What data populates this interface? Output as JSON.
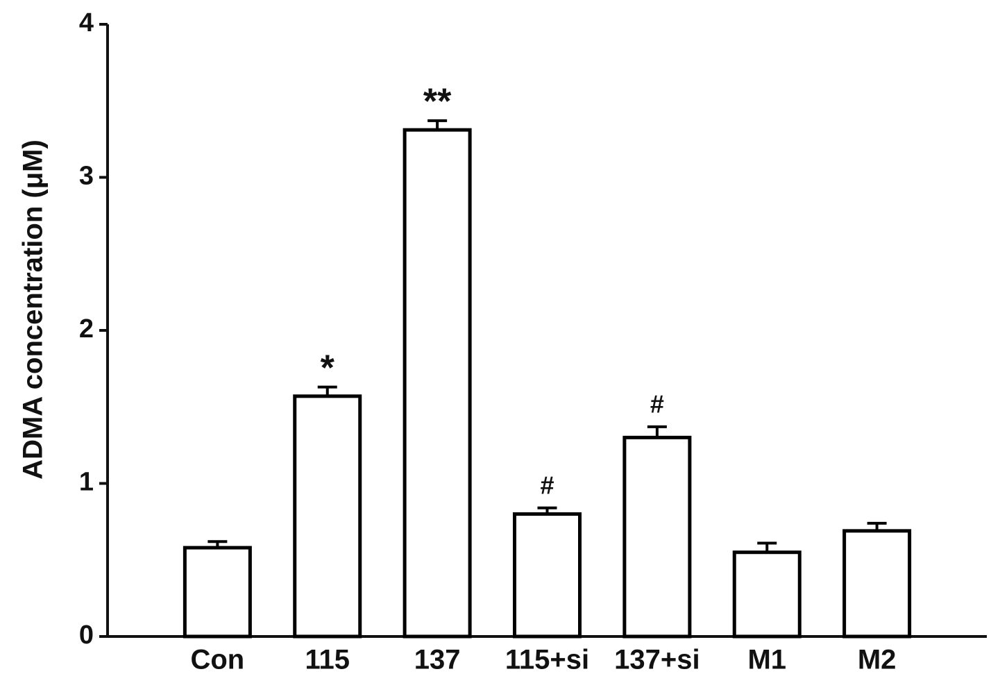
{
  "chart_data": {
    "type": "bar",
    "y_label": "ADMA concentration (μM)",
    "categories": [
      "Con",
      "115",
      "137",
      "115+si",
      "137+si",
      "M1",
      "M2"
    ],
    "values": [
      0.58,
      1.57,
      3.31,
      0.8,
      1.3,
      0.55,
      0.69
    ],
    "errors": [
      0.04,
      0.06,
      0.06,
      0.04,
      0.07,
      0.06,
      0.05
    ],
    "annotations": [
      null,
      "*",
      "**",
      "#",
      "#",
      null,
      null
    ],
    "color": "#ffffff",
    "edge_color": "#000000",
    "ylim": [
      0,
      4
    ],
    "yticks": [
      0,
      1,
      2,
      3,
      4
    ],
    "grid": false
  }
}
